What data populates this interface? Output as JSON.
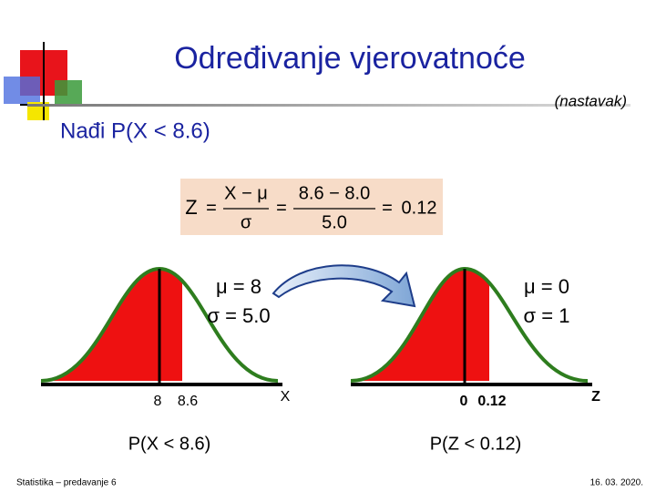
{
  "title": "Određivanje vjerovatnoće",
  "subtitle": "(nastavak)",
  "heading": "Nađi P(X < 8.6)",
  "formula": {
    "variable": "Z",
    "equals": "=",
    "numerator1": "X − μ",
    "denominator1": "σ",
    "numerator2": "8.6 − 8.0",
    "denominator2": "5.0",
    "result": "0.12"
  },
  "left_curve": {
    "mu_label": "μ = 8",
    "sigma_label": "σ = 5.0",
    "tick_labels": [
      "8",
      "8.6"
    ],
    "axis_label": "X",
    "caption": "P(X < 8.6)"
  },
  "right_curve": {
    "mu_label": "μ = 0",
    "sigma_label": "σ = 1",
    "tick_labels": [
      "0",
      "0.12"
    ],
    "axis_label": "Z",
    "caption": "P(Z < 0.12)"
  },
  "footer": {
    "left": "Statistika – predavanje 6",
    "right": "16. 03. 2020."
  }
}
